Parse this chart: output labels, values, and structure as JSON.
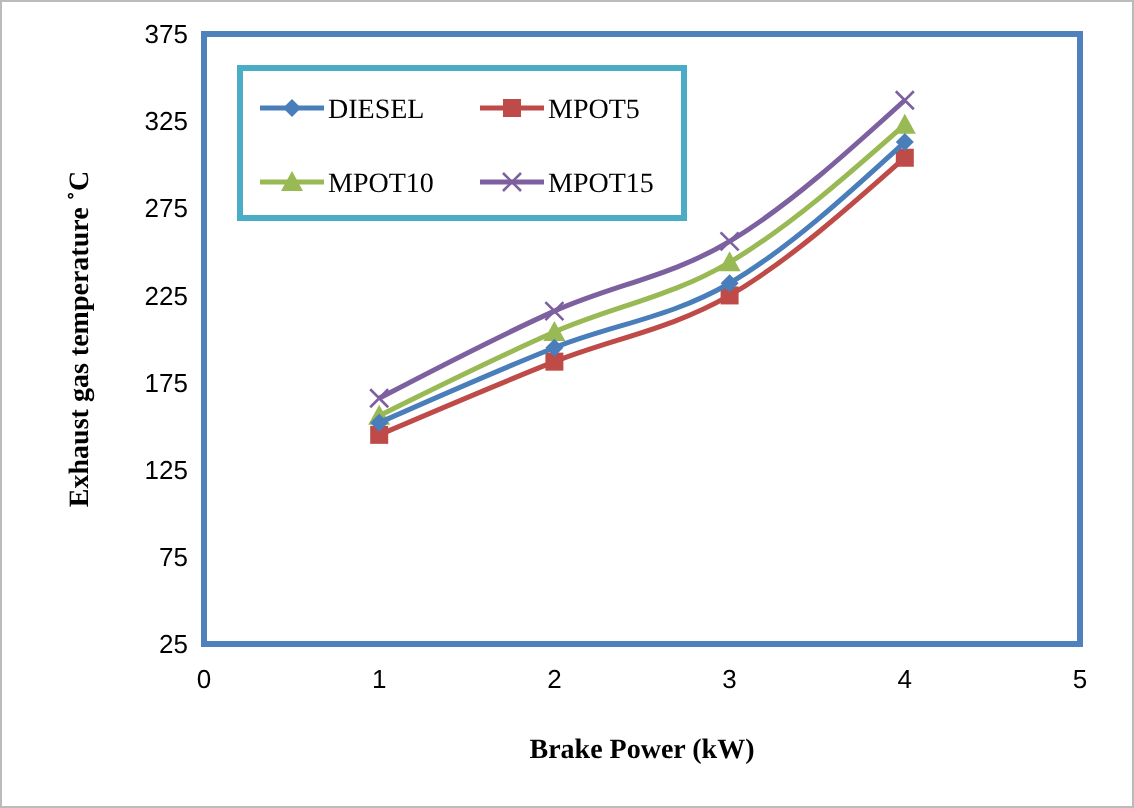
{
  "chart_data": {
    "type": "line",
    "xlabel": "Brake Power (kW)",
    "ylabel": "Exhaust gas temperature ˚C",
    "x": [
      1,
      2,
      3,
      4
    ],
    "xlim": [
      0,
      5
    ],
    "xticks": [
      0,
      1,
      2,
      3,
      4,
      5
    ],
    "ylim": [
      25,
      375
    ],
    "yticks": [
      25,
      75,
      125,
      175,
      225,
      275,
      325,
      375
    ],
    "grid": false,
    "legend": "top left",
    "line_style": "solid",
    "series": [
      {
        "name": "DIESEL",
        "color": "#4a7ebb",
        "marker": "diamond",
        "values": [
          152,
          195,
          232,
          313
        ]
      },
      {
        "name": "MPOT5",
        "color": "#be4b48",
        "marker": "square",
        "values": [
          145,
          187,
          225,
          304
        ]
      },
      {
        "name": "MPOT10",
        "color": "#98b954",
        "marker": "triangle",
        "values": [
          156,
          204,
          244,
          323
        ]
      },
      {
        "name": "MPOT15",
        "color": "#7d60a0",
        "marker": "cross",
        "values": [
          166,
          216,
          256,
          337
        ]
      }
    ]
  }
}
